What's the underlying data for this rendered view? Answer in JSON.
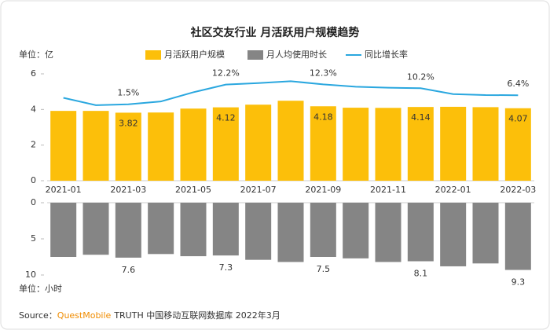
{
  "chart_data": [
    {
      "type": "bar",
      "title": "社区交友行业 月活跃用户规模趋势",
      "unit": "单位：亿",
      "categories": [
        "2021-01",
        null,
        "2021-03",
        null,
        "2021-05",
        null,
        "2021-07",
        null,
        "2021-09",
        null,
        "2021-11",
        null,
        "2022-01",
        null,
        "2022-03"
      ],
      "series": [
        {
          "name": "月活跃用户规模",
          "color": "#fcbf0a",
          "values": [
            3.92,
            3.92,
            3.82,
            3.83,
            4.05,
            4.12,
            4.27,
            4.49,
            4.18,
            4.1,
            4.09,
            4.14,
            4.15,
            4.13,
            4.07
          ],
          "value_labels": [
            null,
            null,
            "3.82",
            null,
            null,
            "4.12",
            null,
            null,
            "4.18",
            null,
            null,
            "4.14",
            null,
            null,
            "4.07"
          ]
        },
        {
          "name": "同比增长率",
          "type": "line",
          "axis": "y2",
          "color": "#2aa7df",
          "values": [
            5.0,
            1.0,
            1.5,
            3.0,
            8.0,
            12.2,
            13.0,
            14.0,
            12.3,
            11.0,
            10.5,
            10.2,
            7.0,
            6.5,
            6.4
          ],
          "value_labels": [
            null,
            null,
            "1.5%",
            null,
            null,
            "12.2%",
            null,
            null,
            "12.3%",
            null,
            null,
            "10.2%",
            null,
            null,
            "6.4%"
          ]
        }
      ],
      "ylim": [
        0,
        6
      ],
      "yticks": [
        0,
        2,
        4,
        6
      ],
      "y2lim": [
        -40,
        18
      ],
      "grid": false
    },
    {
      "type": "bar",
      "unit": "单位：小时",
      "inverted": true,
      "categories": [
        "2021-01",
        null,
        "2021-03",
        null,
        "2021-05",
        null,
        "2021-07",
        null,
        "2021-09",
        null,
        "2021-11",
        null,
        "2022-01",
        null,
        "2022-03"
      ],
      "series": [
        {
          "name": "月人均使用时长",
          "color": "#858585",
          "values": [
            7.5,
            7.2,
            7.6,
            7.1,
            7.4,
            7.3,
            7.9,
            8.2,
            7.5,
            7.7,
            8.2,
            8.1,
            8.8,
            8.4,
            9.3
          ],
          "value_labels": [
            null,
            null,
            "7.6",
            null,
            null,
            "7.3",
            null,
            null,
            "7.5",
            null,
            null,
            "8.1",
            null,
            null,
            "9.3"
          ]
        }
      ],
      "ylim": [
        0,
        10
      ],
      "yticks": [
        0,
        5,
        10
      ],
      "grid": false
    }
  ],
  "source": {
    "prefix": "Source：",
    "brand": "QuestMobile",
    "rest": "TRUTH 中国移动互联网数据库 2022年3月"
  }
}
